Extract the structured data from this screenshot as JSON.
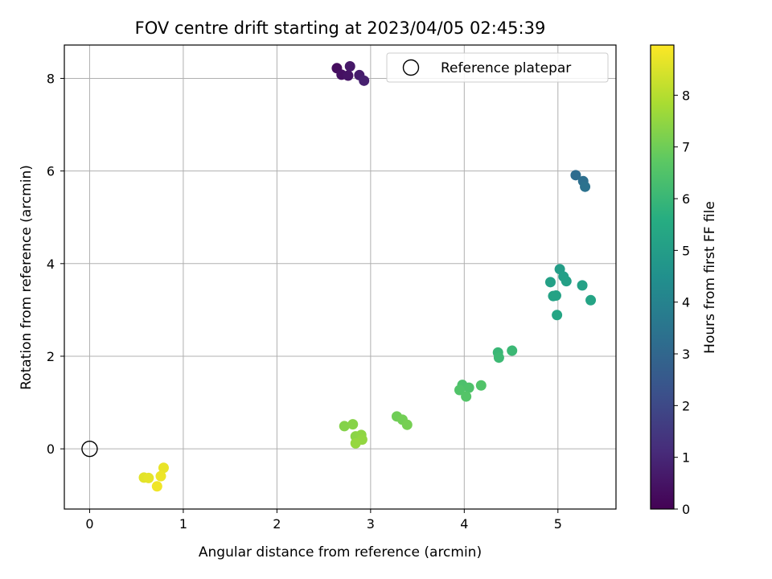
{
  "chart_data": {
    "type": "scatter",
    "title": "FOV centre drift starting at 2023/04/05 02:45:39",
    "xlabel": "Angular distance from reference (arcmin)",
    "ylabel": "Rotation from reference (arcmin)",
    "xlim": [
      -0.27,
      5.62
    ],
    "ylim": [
      -1.3,
      8.72
    ],
    "xticks": [
      0,
      1,
      2,
      3,
      4,
      5
    ],
    "yticks": [
      0,
      2,
      4,
      6,
      8
    ],
    "grid": true,
    "colormap": "viridis",
    "legend": {
      "placement": "top-right",
      "entries": [
        "Reference platepar"
      ]
    },
    "colorbar": {
      "label": "Hours from first FF file",
      "range": [
        0,
        8.97
      ],
      "ticks": [
        0,
        1,
        2,
        3,
        4,
        5,
        6,
        7,
        8
      ]
    },
    "reference_point": {
      "x": 0,
      "y": 0,
      "label": "Reference platepar"
    },
    "points": [
      {
        "x": 2.64,
        "y": 8.22,
        "hours": 0.3
      },
      {
        "x": 2.69,
        "y": 8.08,
        "hours": 0.4
      },
      {
        "x": 2.76,
        "y": 8.06,
        "hours": 0.5
      },
      {
        "x": 2.78,
        "y": 8.26,
        "hours": 0.6
      },
      {
        "x": 2.88,
        "y": 8.07,
        "hours": 0.7
      },
      {
        "x": 2.93,
        "y": 7.95,
        "hours": 0.8
      },
      {
        "x": 5.19,
        "y": 5.91,
        "hours": 3.2
      },
      {
        "x": 5.27,
        "y": 5.78,
        "hours": 3.3
      },
      {
        "x": 5.29,
        "y": 5.66,
        "hours": 3.4
      },
      {
        "x": 5.02,
        "y": 3.88,
        "hours": 5.0
      },
      {
        "x": 5.06,
        "y": 3.72,
        "hours": 5.05
      },
      {
        "x": 4.92,
        "y": 3.6,
        "hours": 5.1
      },
      {
        "x": 5.09,
        "y": 3.62,
        "hours": 5.1
      },
      {
        "x": 5.26,
        "y": 3.53,
        "hours": 5.15
      },
      {
        "x": 4.95,
        "y": 3.3,
        "hours": 5.2
      },
      {
        "x": 4.98,
        "y": 3.31,
        "hours": 5.2
      },
      {
        "x": 5.35,
        "y": 3.21,
        "hours": 5.25
      },
      {
        "x": 4.99,
        "y": 2.89,
        "hours": 5.3
      },
      {
        "x": 4.36,
        "y": 2.08,
        "hours": 6.0
      },
      {
        "x": 4.51,
        "y": 2.12,
        "hours": 6.05
      },
      {
        "x": 4.37,
        "y": 1.97,
        "hours": 6.1
      },
      {
        "x": 3.98,
        "y": 1.38,
        "hours": 6.4
      },
      {
        "x": 4.05,
        "y": 1.32,
        "hours": 6.45
      },
      {
        "x": 3.95,
        "y": 1.27,
        "hours": 6.5
      },
      {
        "x": 4.18,
        "y": 1.37,
        "hours": 6.5
      },
      {
        "x": 4.02,
        "y": 1.13,
        "hours": 6.55
      },
      {
        "x": 3.28,
        "y": 0.7,
        "hours": 7.0
      },
      {
        "x": 3.34,
        "y": 0.63,
        "hours": 7.05
      },
      {
        "x": 3.39,
        "y": 0.52,
        "hours": 7.1
      },
      {
        "x": 2.72,
        "y": 0.49,
        "hours": 7.3
      },
      {
        "x": 2.81,
        "y": 0.53,
        "hours": 7.35
      },
      {
        "x": 2.84,
        "y": 0.27,
        "hours": 7.4
      },
      {
        "x": 2.9,
        "y": 0.3,
        "hours": 7.45
      },
      {
        "x": 2.91,
        "y": 0.2,
        "hours": 7.5
      },
      {
        "x": 2.84,
        "y": 0.12,
        "hours": 7.55
      },
      {
        "x": 0.58,
        "y": -0.62,
        "hours": 8.6
      },
      {
        "x": 0.63,
        "y": -0.63,
        "hours": 8.65
      },
      {
        "x": 0.79,
        "y": -0.41,
        "hours": 8.7
      },
      {
        "x": 0.76,
        "y": -0.59,
        "hours": 8.75
      },
      {
        "x": 0.72,
        "y": -0.81,
        "hours": 8.8
      }
    ]
  }
}
